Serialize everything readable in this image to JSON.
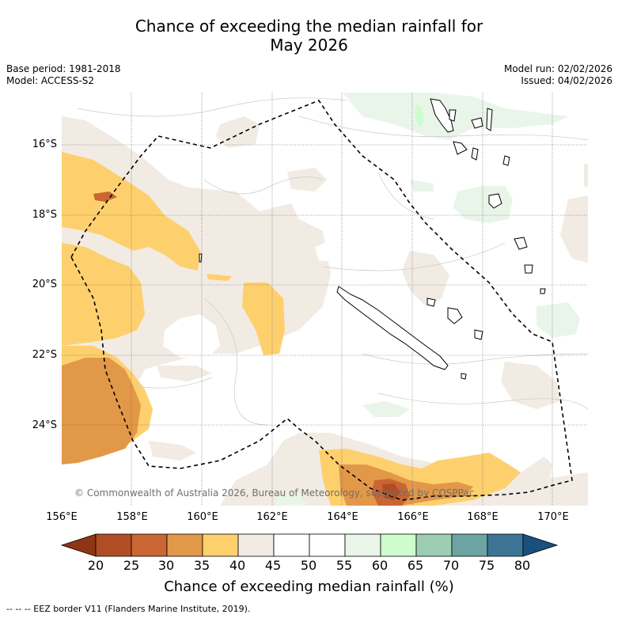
{
  "title_line1": "Chance of exceeding the median rainfall for",
  "title_line2": "May 2026",
  "base_period": "Base period: 1981-2018",
  "model": "Model: ACCESS-S2",
  "model_run": "Model run: 02/02/2026",
  "issued": "Issued: 04/02/2026",
  "copyright": "© Commonwealth of Australia 2026, Bureau of Meteorology, supported by COSPPac",
  "lat_labels": [
    "16°S",
    "18°S",
    "20°S",
    "22°S",
    "24°S"
  ],
  "lon_labels": [
    "156°E",
    "158°E",
    "160°E",
    "162°E",
    "164°E",
    "166°E",
    "168°E",
    "170°E"
  ],
  "colorbar": {
    "title": "Chance of exceeding median rainfall (%)",
    "ticks": [
      "20",
      "25",
      "30",
      "35",
      "40",
      "45",
      "50",
      "55",
      "60",
      "65",
      "70",
      "75",
      "80"
    ],
    "colors": {
      "below20": "#8e3515",
      "c20_25": "#b14d24",
      "c25_30": "#c96633",
      "c30_35": "#e29849",
      "c35_40": "#fed06d",
      "c40_45": "#f1ebe4",
      "c45_50": "#ffffff",
      "c50_55": "#ffffff",
      "c55_60": "#e9f5e9",
      "c60_65": "#cdfdcd",
      "c65_70": "#9dcdb3",
      "c70_75": "#6da3a3",
      "c75_80": "#3e7596",
      "above80": "#19507e"
    }
  },
  "legend_note": "-- -- -- EEZ border V11 (Flanders Marine Institute, 2019)."
}
